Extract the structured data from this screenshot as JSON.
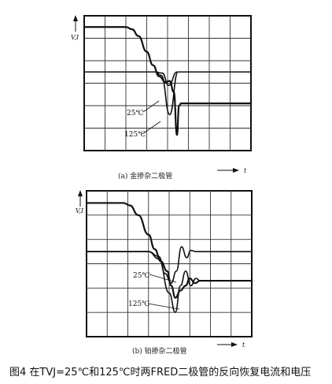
{
  "figure_caption": "图4 在TVJ=25℃和125℃时两FRED二极管的反向恢复电流和电压",
  "chart_data": [
    {
      "type": "line",
      "panel_caption": "(a) 金掺杂二极管",
      "ylabel": "V,I",
      "xlabel": "t",
      "grid": true,
      "annotations": [
        "25℃",
        "125℃"
      ],
      "series": [
        {
          "x": [
            0,
            1,
            2,
            3,
            3.4,
            3.75,
            4.05,
            4.45,
            4.75,
            5,
            8
          ],
          "values": [
            0.5,
            0.5,
            0.5,
            0.5,
            0.5,
            0.45,
            -0.1,
            0.5,
            0.5,
            0.5,
            0.5
          ]
        },
        {
          "x": [
            0,
            1,
            2,
            3,
            3.4,
            3.7,
            4.1,
            4.5,
            4.8,
            5,
            8
          ],
          "values": [
            0.5,
            0.5,
            0.5,
            0.5,
            0.5,
            0.35,
            -1.4,
            0.5,
            0.5,
            0.5,
            0.5
          ]
        },
        {
          "x": [
            0,
            2,
            2.3,
            2.6,
            3,
            3.3,
            3.6,
            3.9,
            4.1,
            4.3,
            4.45,
            4.55,
            4.65,
            4.9,
            8
          ],
          "values": [
            2.5,
            2.5,
            2.4,
            2.1,
            1.4,
            0.8,
            0.3,
            0.05,
            0.1,
            -0.4,
            -2.3,
            -1.0,
            -0.9,
            -0.9,
            -0.9
          ]
        }
      ]
    },
    {
      "type": "line",
      "panel_caption": "(b) 铂掺杂二极管",
      "ylabel": "V,I",
      "xlabel": "t",
      "grid": true,
      "annotations": [
        "25℃",
        "125℃"
      ],
      "series": [
        {
          "x": [
            0,
            1,
            2,
            3,
            3.5,
            3.8,
            4.1,
            4.35,
            4.6,
            4.85,
            5.05,
            5.3,
            8
          ],
          "values": [
            0.5,
            0.5,
            0.5,
            0.5,
            0.3,
            -0.4,
            -0.8,
            -0.3,
            0.7,
            0.25,
            0.55,
            0.5,
            0.5
          ]
        },
        {
          "x": [
            0,
            1,
            2,
            3,
            3.5,
            4.0,
            4.3,
            4.55,
            4.8,
            5.05,
            5.3,
            5.5,
            8
          ],
          "values": [
            0.5,
            0.5,
            0.5,
            0.5,
            0.2,
            -1.2,
            -2.0,
            -0.9,
            -0.3,
            -0.9,
            -0.6,
            -0.7,
            -0.7
          ]
        },
        {
          "x": [
            0,
            1.8,
            2.1,
            2.5,
            3,
            3.3,
            3.6,
            3.9,
            4.1,
            4.3,
            4.55,
            4.8,
            5,
            5.25,
            5.5,
            8
          ],
          "values": [
            2.5,
            2.5,
            2.4,
            2.0,
            1.2,
            0.6,
            0.1,
            -0.3,
            -0.9,
            -1.4,
            -1.1,
            -0.9,
            -0.6,
            -0.8,
            -0.7,
            -0.7
          ]
        }
      ]
    }
  ]
}
